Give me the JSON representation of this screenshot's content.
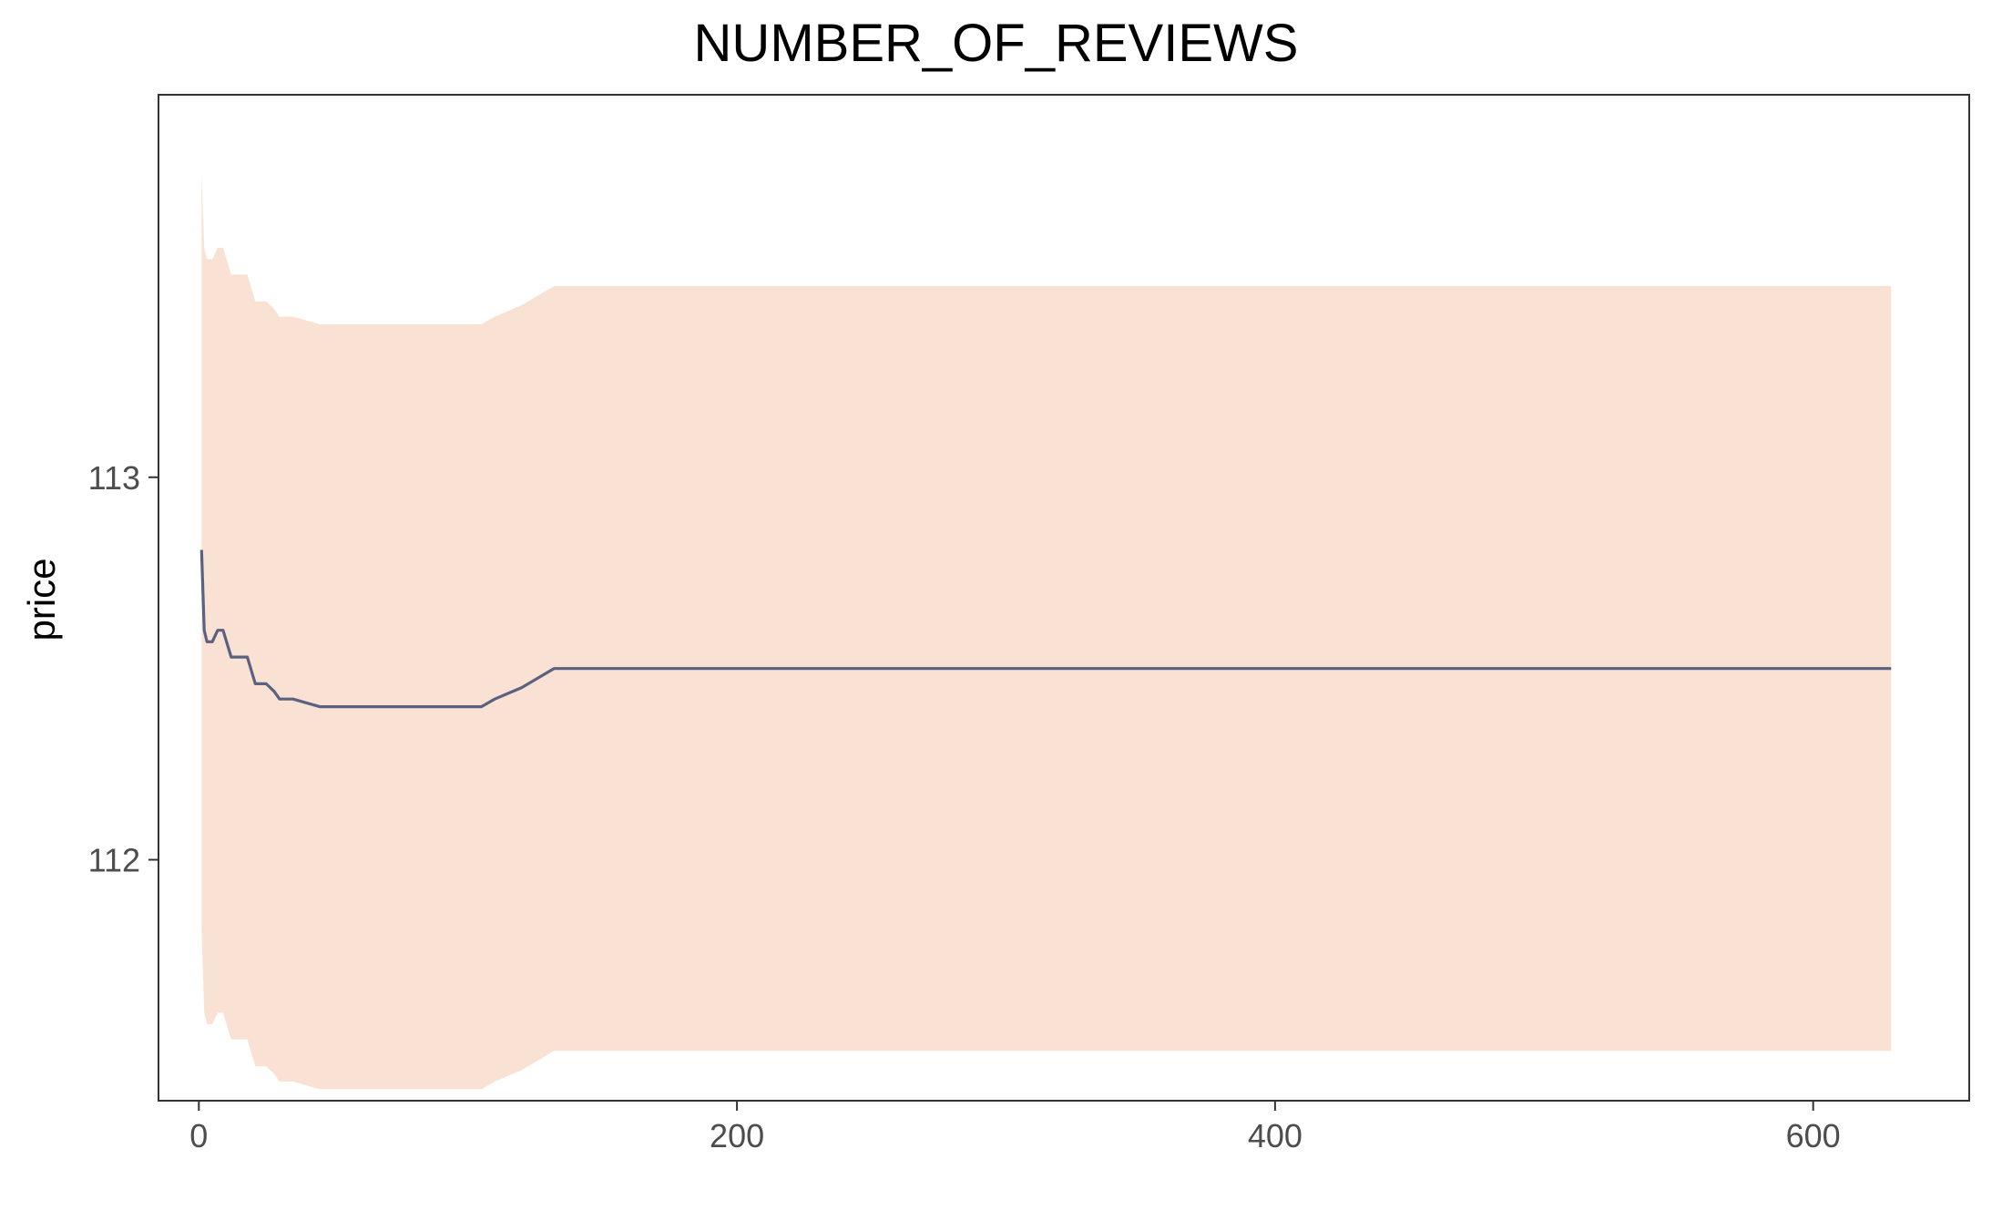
{
  "chart_data": {
    "type": "line",
    "title": "NUMBER_OF_REVIEWS",
    "xlabel": "",
    "ylabel": "price",
    "xlim": [
      -15,
      658
    ],
    "ylim": [
      111.37,
      114.0
    ],
    "x_ticks": [
      0,
      200,
      400,
      600
    ],
    "y_ticks": [
      112,
      113
    ],
    "grid": false,
    "legend": "none",
    "colors": {
      "line": "#5b6180",
      "band": "#f9e2d4",
      "axis": "#333333"
    },
    "series": [
      {
        "x": [
          1,
          2,
          3,
          5,
          7,
          9,
          12,
          15,
          18,
          21,
          25,
          28,
          30,
          35,
          40,
          45,
          50,
          60,
          70,
          80,
          90,
          100,
          105,
          110,
          120,
          132,
          150,
          200,
          300,
          400,
          500,
          600,
          629
        ],
        "y": [
          112.81,
          112.6,
          112.57,
          112.57,
          112.6,
          112.6,
          112.53,
          112.53,
          112.53,
          112.46,
          112.46,
          112.44,
          112.42,
          112.42,
          112.41,
          112.4,
          112.4,
          112.4,
          112.4,
          112.4,
          112.4,
          112.4,
          112.4,
          112.42,
          112.45,
          112.5,
          112.5,
          112.5,
          112.5,
          112.5,
          112.5,
          112.5,
          112.5
        ],
        "lower": [
          111.82,
          111.6,
          111.57,
          111.57,
          111.6,
          111.6,
          111.53,
          111.53,
          111.53,
          111.46,
          111.46,
          111.44,
          111.42,
          111.42,
          111.41,
          111.4,
          111.4,
          111.4,
          111.4,
          111.4,
          111.4,
          111.4,
          111.4,
          111.42,
          111.45,
          111.5,
          111.5,
          111.5,
          111.5,
          111.5,
          111.5,
          111.5,
          111.5
        ],
        "upper": [
          113.8,
          113.6,
          113.57,
          113.57,
          113.6,
          113.6,
          113.53,
          113.53,
          113.53,
          113.46,
          113.46,
          113.44,
          113.42,
          113.42,
          113.41,
          113.4,
          113.4,
          113.4,
          113.4,
          113.4,
          113.4,
          113.4,
          113.4,
          113.42,
          113.45,
          113.5,
          113.5,
          113.5,
          113.5,
          113.5,
          113.5,
          113.5,
          113.5
        ]
      }
    ]
  }
}
